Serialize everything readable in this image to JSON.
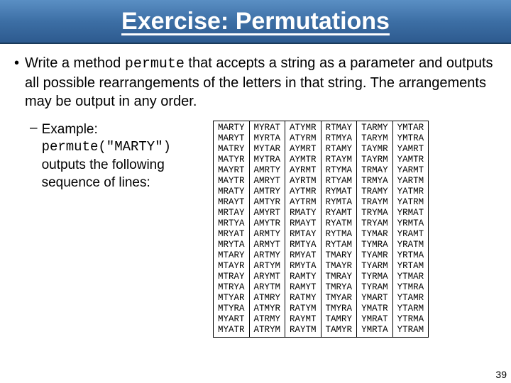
{
  "title": "Exercise: Permutations",
  "bullet_intro": "Write a method ",
  "bullet_code": "permute",
  "bullet_rest": " that accepts a string as a parameter and outputs all possible rearrangements of the letters in that string.  The arrangements may be output in any order.",
  "example_label": "Example:",
  "example_code": "permute(\"MARTY\")",
  "example_rest": "outputs the following sequence of lines:",
  "page_number": "39",
  "columns": [
    [
      "MARTY",
      "MARYT",
      "MATRY",
      "MATYR",
      "MAYRT",
      "MAYTR",
      "MRATY",
      "MRAYT",
      "MRTAY",
      "MRTYA",
      "MRYAT",
      "MRYTA",
      "MTARY",
      "MTAYR",
      "MTRAY",
      "MTRYA",
      "MTYAR",
      "MTYRA",
      "MYART",
      "MYATR"
    ],
    [
      "MYRAT",
      "MYRTA",
      "MYTAR",
      "MYTRA",
      "AMRTY",
      "AMRYT",
      "AMTRY",
      "AMTYR",
      "AMYRT",
      "AMYTR",
      "ARMTY",
      "ARMYT",
      "ARTMY",
      "ARTYM",
      "ARYMT",
      "ARYTM",
      "ATMRY",
      "ATMYR",
      "ATRMY",
      "ATRYM"
    ],
    [
      "ATYMR",
      "ATYRM",
      "AYMRT",
      "AYMTR",
      "AYRMT",
      "AYRTM",
      "AYTMR",
      "AYTRM",
      "RMATY",
      "RMAYT",
      "RMTAY",
      "RMTYA",
      "RMYAT",
      "RMYTA",
      "RAMTY",
      "RAMYT",
      "RATMY",
      "RATYM",
      "RAYMT",
      "RAYTM"
    ],
    [
      "RTMAY",
      "RTMYA",
      "RTAMY",
      "RTAYM",
      "RTYMA",
      "RTYAM",
      "RYMAT",
      "RYMTA",
      "RYAMT",
      "RYATM",
      "RYTMA",
      "RYTAM",
      "TMARY",
      "TMAYR",
      "TMRAY",
      "TMRYA",
      "TMYAR",
      "TMYRA",
      "TAMRY",
      "TAMYR"
    ],
    [
      "TARMY",
      "TARYM",
      "TAYMR",
      "TAYRM",
      "TRMAY",
      "TRMYA",
      "TRAMY",
      "TRAYM",
      "TRYMA",
      "TRYAM",
      "TYMAR",
      "TYMRA",
      "TYAMR",
      "TYARM",
      "TYRMA",
      "TYRAM",
      "YMART",
      "YMATR",
      "YMRAT",
      "YMRTA"
    ],
    [
      "YMTAR",
      "YMTRA",
      "YAMRT",
      "YAMTR",
      "YARMT",
      "YARTM",
      "YATMR",
      "YATRM",
      "YRMAT",
      "YRMTA",
      "YRAMT",
      "YRATM",
      "YRTMA",
      "YRTAM",
      "YTMAR",
      "YTMRA",
      "YTAMR",
      "YTARM",
      "YTRMA",
      "YTRAM"
    ]
  ]
}
